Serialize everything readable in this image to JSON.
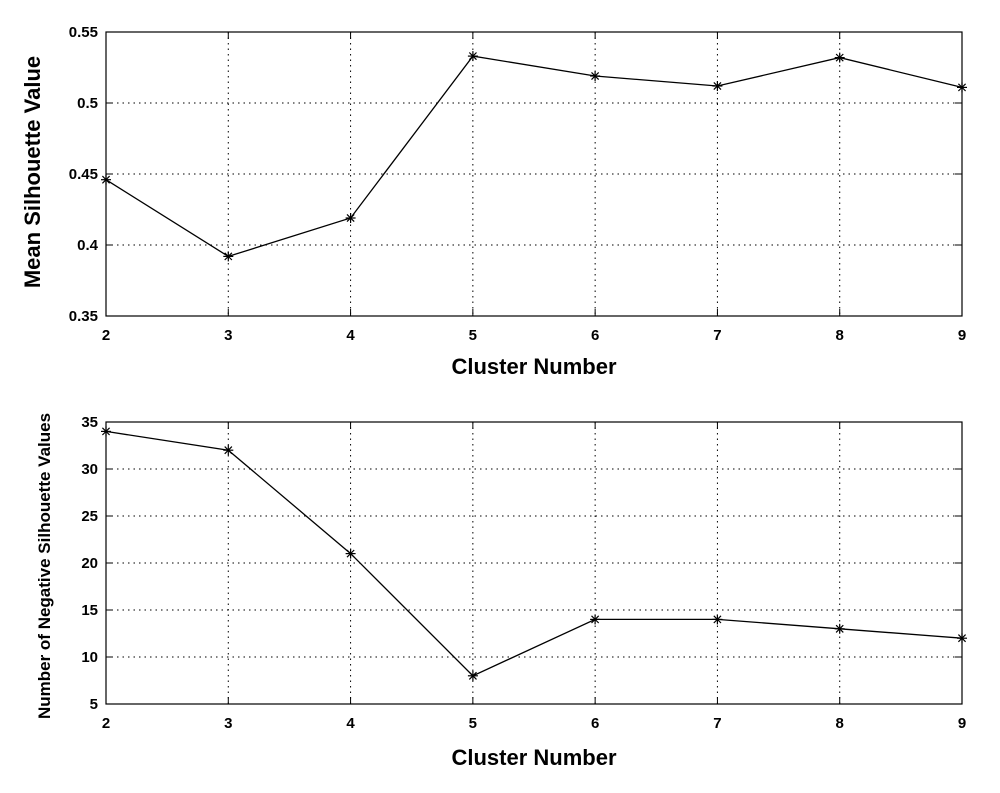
{
  "chart_data": [
    {
      "type": "line",
      "title": "",
      "xlabel": "Cluster Number",
      "ylabel": "Mean Silhouette Value",
      "x": [
        2,
        3,
        4,
        5,
        6,
        7,
        8,
        9
      ],
      "xlim": [
        2,
        9
      ],
      "ylim": [
        0.35,
        0.55
      ],
      "xticks": [
        "2",
        "3",
        "4",
        "5",
        "6",
        "7",
        "8",
        "9"
      ],
      "yticks": [
        "0.35",
        "0.4",
        "0.45",
        "0.5",
        "0.55"
      ],
      "ytick_values": [
        0.35,
        0.4,
        0.45,
        0.5,
        0.55
      ],
      "grid": true,
      "marker": "asterisk",
      "series": [
        {
          "values": [
            0.446,
            0.392,
            0.419,
            0.533,
            0.519,
            0.512,
            0.532,
            0.511
          ]
        }
      ]
    },
    {
      "type": "line",
      "title": "",
      "xlabel": "Cluster Number",
      "ylabel": "Number of Negative Silhouette Values",
      "x": [
        2,
        3,
        4,
        5,
        6,
        7,
        8,
        9
      ],
      "xlim": [
        2,
        9
      ],
      "ylim": [
        5,
        35
      ],
      "xticks": [
        "2",
        "3",
        "4",
        "5",
        "6",
        "7",
        "8",
        "9"
      ],
      "yticks": [
        "5",
        "10",
        "15",
        "20",
        "25",
        "30",
        "35"
      ],
      "ytick_values": [
        5,
        10,
        15,
        20,
        25,
        30,
        35
      ],
      "grid": true,
      "marker": "asterisk",
      "series": [
        {
          "values": [
            34,
            32,
            21,
            8,
            14,
            14,
            13,
            12
          ]
        }
      ]
    }
  ],
  "colors": {
    "line": "#000000",
    "grid": "#000000",
    "background": "#ffffff"
  }
}
